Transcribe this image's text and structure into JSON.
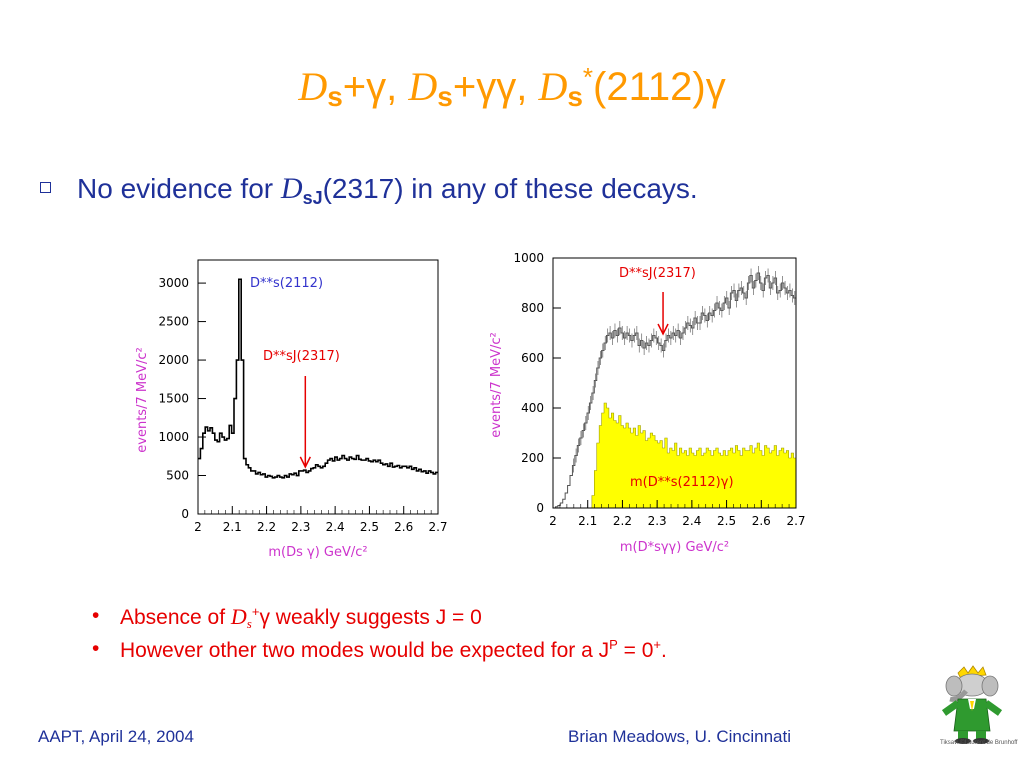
{
  "slide": {
    "title_parts": [
      "D",
      "s",
      "+γ, ",
      "D",
      "s",
      "+γγ, ",
      "D",
      "s",
      "*",
      "(2112)γ"
    ],
    "bullet": {
      "pre": "No evidence for ",
      "d": "D",
      "sub": "sJ",
      "post": "(2317) in any of these decays."
    },
    "notes": [
      {
        "pre": "Absence of ",
        "d": "D",
        "sub": "s",
        "sup": "+",
        "post": "γ weakly suggests J = 0"
      },
      {
        "pre": "However other two modes would be expected for a J",
        "sup": "P",
        "mid": " = 0",
        "sup2": "+",
        "post": "."
      }
    ],
    "footer_left": "AAPT, April 24, 2004",
    "footer_right": "Brian Meadows, U. Cincinnati",
    "mascot_credit": "Tiksavi ©Laurent de Brunhoff"
  },
  "chart_data": [
    {
      "type": "line",
      "xlabel": "m(Ds γ) GeV/c²",
      "ylabel": "events/7 MeV/c²",
      "xlim": [
        2,
        2.7
      ],
      "ylim": [
        0,
        3300
      ],
      "xticks": [
        "2",
        "2.1",
        "2.2",
        "2.3",
        "2.4",
        "2.5",
        "2.6",
        "2.7"
      ],
      "yticks": [
        "0",
        "500",
        "1000",
        "1500",
        "2000",
        "2500",
        "3000"
      ],
      "annotations": [
        {
          "text": "D**s(2112)",
          "color": "#3333cc"
        },
        {
          "text": "D**sJ(2317)",
          "color": "#e60000",
          "arrow_x": 2.313
        }
      ],
      "series": [
        {
          "color": "#000000",
          "x": [
            2.0,
            2.007,
            2.014,
            2.021,
            2.028,
            2.035,
            2.042,
            2.049,
            2.056,
            2.063,
            2.07,
            2.077,
            2.084,
            2.091,
            2.098,
            2.105,
            2.112,
            2.119,
            2.126,
            2.133,
            2.14,
            2.147,
            2.154,
            2.161,
            2.168,
            2.175,
            2.182,
            2.189,
            2.196,
            2.203,
            2.21,
            2.217,
            2.224,
            2.231,
            2.238,
            2.245,
            2.252,
            2.259,
            2.266,
            2.273,
            2.28,
            2.287,
            2.294,
            2.301,
            2.308,
            2.315,
            2.322,
            2.329,
            2.336,
            2.343,
            2.35,
            2.357,
            2.364,
            2.371,
            2.378,
            2.385,
            2.392,
            2.399,
            2.406,
            2.413,
            2.42,
            2.427,
            2.434,
            2.441,
            2.448,
            2.455,
            2.462,
            2.469,
            2.476,
            2.483,
            2.49,
            2.497,
            2.504,
            2.511,
            2.518,
            2.525,
            2.532,
            2.539,
            2.546,
            2.553,
            2.56,
            2.567,
            2.574,
            2.581,
            2.588,
            2.595,
            2.602,
            2.609,
            2.616,
            2.623,
            2.63,
            2.637,
            2.644,
            2.651,
            2.658,
            2.665,
            2.672,
            2.679,
            2.686,
            2.693
          ],
          "y": [
            720,
            850,
            1050,
            1130,
            1080,
            1120,
            1050,
            960,
            940,
            1050,
            1000,
            960,
            980,
            1150,
            1050,
            1500,
            2000,
            3050,
            2000,
            720,
            640,
            600,
            560,
            560,
            520,
            540,
            510,
            520,
            480,
            500,
            490,
            470,
            480,
            500,
            480,
            470,
            500,
            480,
            520,
            510,
            530,
            500,
            560,
            560,
            570,
            540,
            560,
            590,
            600,
            640,
            620,
            600,
            620,
            660,
            700,
            720,
            690,
            740,
            700,
            720,
            760,
            720,
            700,
            740,
            720,
            710,
            760,
            710,
            700,
            700,
            720,
            690,
            680,
            700,
            680,
            700,
            660,
            640,
            650,
            620,
            660,
            610,
            620,
            630,
            600,
            620,
            620,
            600,
            620,
            580,
            600,
            560,
            580,
            550,
            560,
            530,
            560,
            540,
            520,
            540
          ]
        }
      ]
    },
    {
      "type": "line",
      "xlabel": "m(D*sγγ) GeV/c²",
      "ylabel": "events/7 MeV/c²",
      "xlim": [
        2,
        2.7
      ],
      "ylim": [
        0,
        1000
      ],
      "xticks": [
        "2",
        "2.1",
        "2.2",
        "2.3",
        "2.4",
        "2.5",
        "2.6",
        "2.7"
      ],
      "yticks": [
        "0",
        "200",
        "400",
        "600",
        "800",
        "1000"
      ],
      "annotations": [
        {
          "text": "D**sJ(2317)",
          "color": "#e60000",
          "arrow_x": 2.317
        },
        {
          "text": "m(D**s(2112)γ)",
          "color": "#e60000"
        }
      ],
      "series": [
        {
          "color": "#555555",
          "x": [
            2.0,
            2.007,
            2.014,
            2.021,
            2.028,
            2.035,
            2.042,
            2.049,
            2.056,
            2.063,
            2.07,
            2.077,
            2.084,
            2.091,
            2.098,
            2.105,
            2.112,
            2.119,
            2.126,
            2.133,
            2.14,
            2.147,
            2.154,
            2.161,
            2.168,
            2.175,
            2.182,
            2.189,
            2.196,
            2.203,
            2.21,
            2.217,
            2.224,
            2.231,
            2.238,
            2.245,
            2.252,
            2.259,
            2.266,
            2.273,
            2.28,
            2.287,
            2.294,
            2.301,
            2.308,
            2.315,
            2.322,
            2.329,
            2.336,
            2.343,
            2.35,
            2.357,
            2.364,
            2.371,
            2.378,
            2.385,
            2.392,
            2.399,
            2.406,
            2.413,
            2.42,
            2.427,
            2.434,
            2.441,
            2.448,
            2.455,
            2.462,
            2.469,
            2.476,
            2.483,
            2.49,
            2.497,
            2.504,
            2.511,
            2.518,
            2.525,
            2.532,
            2.539,
            2.546,
            2.553,
            2.56,
            2.567,
            2.574,
            2.581,
            2.588,
            2.595,
            2.602,
            2.609,
            2.616,
            2.623,
            2.63,
            2.637,
            2.644,
            2.651,
            2.658,
            2.665,
            2.672,
            2.679,
            2.686,
            2.693
          ],
          "y": [
            0,
            5,
            10,
            20,
            35,
            60,
            90,
            130,
            170,
            210,
            250,
            280,
            310,
            340,
            380,
            420,
            460,
            510,
            560,
            600,
            630,
            660,
            690,
            700,
            680,
            710,
            690,
            720,
            700,
            680,
            700,
            690,
            670,
            690,
            700,
            650,
            670,
            640,
            660,
            650,
            670,
            690,
            680,
            660,
            650,
            630,
            670,
            690,
            680,
            700,
            690,
            710,
            680,
            700,
            720,
            740,
            730,
            720,
            760,
            740,
            740,
            780,
            770,
            750,
            780,
            770,
            790,
            820,
            800,
            790,
            820,
            840,
            800,
            860,
            870,
            830,
            870,
            880,
            860,
            840,
            900,
            930,
            880,
            910,
            940,
            900,
            870,
            920,
            930,
            880,
            900,
            920,
            860,
            870,
            900,
            880,
            860,
            870,
            850,
            840
          ]
        },
        {
          "color": "#ffff00",
          "fill": true,
          "x": [
            2.0,
            2.007,
            2.014,
            2.021,
            2.028,
            2.035,
            2.042,
            2.049,
            2.056,
            2.063,
            2.07,
            2.077,
            2.084,
            2.091,
            2.098,
            2.105,
            2.112,
            2.119,
            2.126,
            2.133,
            2.14,
            2.147,
            2.154,
            2.161,
            2.168,
            2.175,
            2.182,
            2.189,
            2.196,
            2.203,
            2.21,
            2.217,
            2.224,
            2.231,
            2.238,
            2.245,
            2.252,
            2.259,
            2.266,
            2.273,
            2.28,
            2.287,
            2.294,
            2.301,
            2.308,
            2.315,
            2.322,
            2.329,
            2.336,
            2.343,
            2.35,
            2.357,
            2.364,
            2.371,
            2.378,
            2.385,
            2.392,
            2.399,
            2.406,
            2.413,
            2.42,
            2.427,
            2.434,
            2.441,
            2.448,
            2.455,
            2.462,
            2.469,
            2.476,
            2.483,
            2.49,
            2.497,
            2.504,
            2.511,
            2.518,
            2.525,
            2.532,
            2.539,
            2.546,
            2.553,
            2.56,
            2.567,
            2.574,
            2.581,
            2.588,
            2.595,
            2.602,
            2.609,
            2.616,
            2.623,
            2.63,
            2.637,
            2.644,
            2.651,
            2.658,
            2.665,
            2.672,
            2.679,
            2.686,
            2.693
          ],
          "y": [
            0,
            0,
            0,
            0,
            0,
            0,
            0,
            0,
            0,
            0,
            0,
            0,
            0,
            0,
            0,
            0,
            50,
            150,
            260,
            330,
            380,
            420,
            400,
            360,
            380,
            350,
            340,
            370,
            330,
            320,
            340,
            320,
            300,
            320,
            290,
            330,
            300,
            310,
            270,
            280,
            300,
            290,
            270,
            260,
            270,
            240,
            280,
            220,
            240,
            230,
            260,
            210,
            240,
            220,
            230,
            210,
            240,
            220,
            210,
            230,
            240,
            210,
            220,
            240,
            230,
            210,
            230,
            240,
            220,
            210,
            230,
            210,
            230,
            240,
            220,
            250,
            230,
            210,
            240,
            230,
            230,
            250,
            220,
            240,
            260,
            230,
            210,
            250,
            240,
            220,
            230,
            250,
            210,
            230,
            240,
            220,
            230,
            200,
            220,
            200
          ]
        }
      ]
    }
  ]
}
